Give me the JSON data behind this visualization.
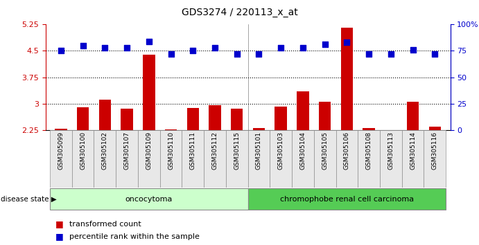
{
  "title": "GDS3274 / 220113_x_at",
  "samples": [
    "GSM305099",
    "GSM305100",
    "GSM305102",
    "GSM305107",
    "GSM305109",
    "GSM305110",
    "GSM305111",
    "GSM305112",
    "GSM305115",
    "GSM305101",
    "GSM305103",
    "GSM305104",
    "GSM305105",
    "GSM305106",
    "GSM305108",
    "GSM305113",
    "GSM305114",
    "GSM305116"
  ],
  "transformed_count": [
    2.28,
    2.9,
    3.1,
    2.85,
    4.4,
    2.27,
    2.88,
    2.95,
    2.85,
    2.3,
    2.92,
    3.35,
    3.05,
    5.15,
    2.3,
    2.22,
    3.05,
    2.35
  ],
  "percentile_rank_pct": [
    75,
    80,
    78,
    78,
    84,
    72,
    75,
    78,
    72,
    72,
    78,
    78,
    81,
    83,
    72,
    72,
    76,
    72
  ],
  "bar_color": "#cc0000",
  "dot_color": "#0000cc",
  "ylim_left": [
    2.25,
    5.25
  ],
  "ylim_right": [
    0,
    100
  ],
  "yticks_left": [
    2.25,
    3.0,
    3.75,
    4.5,
    5.25
  ],
  "yticks_left_labels": [
    "2.25",
    "3",
    "3.75",
    "4.5",
    "5.25"
  ],
  "yticks_right": [
    0,
    25,
    50,
    75,
    100
  ],
  "yticks_right_labels": [
    "0",
    "25",
    "50",
    "75",
    "100%"
  ],
  "hlines": [
    3.0,
    3.75,
    4.5
  ],
  "oncocytoma_count": 9,
  "chromophobe_count": 9,
  "group1_label": "oncocytoma",
  "group2_label": "chromophobe renal cell carcinoma",
  "group1_color": "#ccffcc",
  "group2_color": "#55cc55",
  "disease_state_label": "disease state",
  "legend1_label": "transformed count",
  "legend2_label": "percentile rank within the sample",
  "bar_width": 0.55,
  "dot_size": 30,
  "bg_color": "#f8f8f8"
}
